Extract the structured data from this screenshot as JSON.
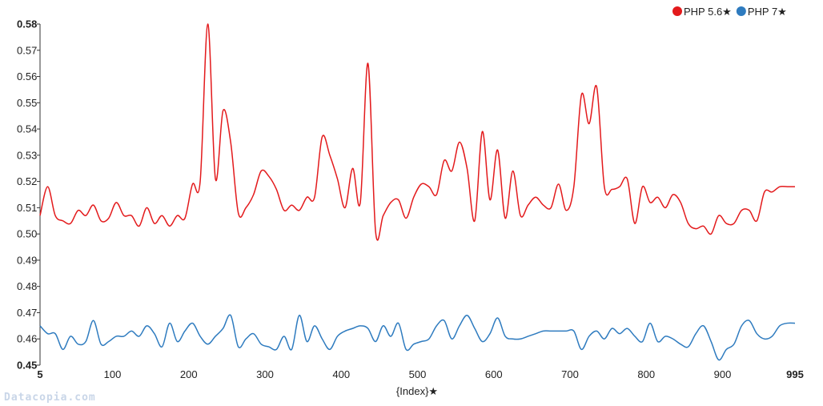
{
  "watermark": "Datacopia.com",
  "legend": [
    {
      "label": "PHP 5.6★",
      "color": "#e31a1c"
    },
    {
      "label": "PHP 7★",
      "color": "#2e7bbf"
    }
  ],
  "chart_data": {
    "type": "line",
    "xlabel": "{Index}★",
    "ylabel": "",
    "xlim": [
      5,
      995
    ],
    "ylim": [
      0.45,
      0.58
    ],
    "x_ticks": [
      {
        "value": 5,
        "label": "5",
        "bold": true
      },
      {
        "value": 100,
        "label": "100",
        "bold": false
      },
      {
        "value": 200,
        "label": "200",
        "bold": false
      },
      {
        "value": 300,
        "label": "300",
        "bold": false
      },
      {
        "value": 400,
        "label": "400",
        "bold": false
      },
      {
        "value": 500,
        "label": "500",
        "bold": false
      },
      {
        "value": 600,
        "label": "600",
        "bold": false
      },
      {
        "value": 700,
        "label": "700",
        "bold": false
      },
      {
        "value": 800,
        "label": "800",
        "bold": false
      },
      {
        "value": 900,
        "label": "900",
        "bold": false
      },
      {
        "value": 995,
        "label": "995",
        "bold": true
      }
    ],
    "y_ticks": [
      {
        "value": 0.45,
        "label": "0.45",
        "bold": true
      },
      {
        "value": 0.46,
        "label": "0.46",
        "bold": false
      },
      {
        "value": 0.47,
        "label": "0.47",
        "bold": false
      },
      {
        "value": 0.48,
        "label": "0.48",
        "bold": false
      },
      {
        "value": 0.49,
        "label": "0.49",
        "bold": false
      },
      {
        "value": 0.5,
        "label": "0.50",
        "bold": false
      },
      {
        "value": 0.51,
        "label": "0.51",
        "bold": false
      },
      {
        "value": 0.52,
        "label": "0.52",
        "bold": false
      },
      {
        "value": 0.53,
        "label": "0.53",
        "bold": false
      },
      {
        "value": 0.54,
        "label": "0.54",
        "bold": false
      },
      {
        "value": 0.55,
        "label": "0.55",
        "bold": false
      },
      {
        "value": 0.56,
        "label": "0.56",
        "bold": false
      },
      {
        "value": 0.57,
        "label": "0.57",
        "bold": false
      },
      {
        "value": 0.58,
        "label": "0.58",
        "bold": true
      }
    ],
    "grid": false,
    "legend_position": "top-right",
    "series": [
      {
        "name": "PHP 5.6★",
        "color": "#e31a1c",
        "x": [
          5,
          15,
          25,
          35,
          45,
          55,
          65,
          75,
          85,
          95,
          105,
          115,
          125,
          135,
          145,
          155,
          165,
          175,
          185,
          195,
          205,
          215,
          225,
          235,
          245,
          255,
          265,
          275,
          285,
          295,
          305,
          315,
          325,
          335,
          345,
          355,
          365,
          375,
          385,
          395,
          405,
          415,
          425,
          435,
          445,
          455,
          465,
          475,
          485,
          495,
          505,
          515,
          525,
          535,
          545,
          555,
          565,
          575,
          585,
          595,
          605,
          615,
          625,
          635,
          645,
          655,
          665,
          675,
          685,
          695,
          705,
          715,
          725,
          735,
          745,
          755,
          765,
          775,
          785,
          795,
          805,
          815,
          825,
          835,
          845,
          855,
          865,
          875,
          885,
          895,
          905,
          915,
          925,
          935,
          945,
          955,
          965,
          975,
          985,
          995
        ],
        "y": [
          0.507,
          0.518,
          0.507,
          0.505,
          0.504,
          0.509,
          0.507,
          0.511,
          0.505,
          0.506,
          0.512,
          0.507,
          0.507,
          0.503,
          0.51,
          0.504,
          0.507,
          0.503,
          0.507,
          0.506,
          0.519,
          0.52,
          0.58,
          0.521,
          0.547,
          0.535,
          0.508,
          0.51,
          0.515,
          0.524,
          0.522,
          0.517,
          0.509,
          0.511,
          0.509,
          0.514,
          0.514,
          0.537,
          0.53,
          0.521,
          0.51,
          0.525,
          0.512,
          0.565,
          0.501,
          0.507,
          0.512,
          0.513,
          0.506,
          0.514,
          0.519,
          0.518,
          0.515,
          0.528,
          0.524,
          0.535,
          0.525,
          0.505,
          0.539,
          0.513,
          0.532,
          0.506,
          0.524,
          0.507,
          0.511,
          0.514,
          0.511,
          0.51,
          0.519,
          0.509,
          0.518,
          0.553,
          0.542,
          0.556,
          0.518,
          0.517,
          0.518,
          0.521,
          0.504,
          0.518,
          0.512,
          0.514,
          0.51,
          0.515,
          0.512,
          0.504,
          0.502,
          0.503,
          0.5,
          0.507,
          0.504,
          0.504,
          0.509,
          0.509,
          0.505,
          0.516,
          0.516,
          0.518,
          0.518,
          0.518
        ]
      },
      {
        "name": "PHP 7★",
        "color": "#2e7bbf",
        "x": [
          5,
          15,
          25,
          35,
          45,
          55,
          65,
          75,
          85,
          95,
          105,
          115,
          125,
          135,
          145,
          155,
          165,
          175,
          185,
          195,
          205,
          215,
          225,
          235,
          245,
          255,
          265,
          275,
          285,
          295,
          305,
          315,
          325,
          335,
          345,
          355,
          365,
          375,
          385,
          395,
          405,
          415,
          425,
          435,
          445,
          455,
          465,
          475,
          485,
          495,
          505,
          515,
          525,
          535,
          545,
          555,
          565,
          575,
          585,
          595,
          605,
          615,
          625,
          635,
          645,
          655,
          665,
          675,
          685,
          695,
          705,
          715,
          725,
          735,
          745,
          755,
          765,
          775,
          785,
          795,
          805,
          815,
          825,
          835,
          845,
          855,
          865,
          875,
          885,
          895,
          905,
          915,
          925,
          935,
          945,
          955,
          965,
          975,
          985,
          995
        ],
        "y": [
          0.465,
          0.462,
          0.462,
          0.456,
          0.461,
          0.458,
          0.459,
          0.467,
          0.458,
          0.459,
          0.461,
          0.461,
          0.463,
          0.461,
          0.465,
          0.462,
          0.457,
          0.466,
          0.459,
          0.463,
          0.466,
          0.461,
          0.458,
          0.461,
          0.464,
          0.469,
          0.457,
          0.46,
          0.462,
          0.458,
          0.457,
          0.456,
          0.461,
          0.456,
          0.469,
          0.459,
          0.465,
          0.46,
          0.456,
          0.461,
          0.463,
          0.464,
          0.465,
          0.464,
          0.459,
          0.465,
          0.461,
          0.466,
          0.456,
          0.458,
          0.459,
          0.46,
          0.465,
          0.467,
          0.46,
          0.465,
          0.469,
          0.464,
          0.459,
          0.462,
          0.468,
          0.461,
          0.46,
          0.46,
          0.461,
          0.462,
          0.463,
          0.463,
          0.463,
          0.463,
          0.463,
          0.456,
          0.461,
          0.463,
          0.46,
          0.464,
          0.462,
          0.464,
          0.461,
          0.459,
          0.466,
          0.459,
          0.461,
          0.46,
          0.458,
          0.457,
          0.462,
          0.465,
          0.459,
          0.452,
          0.456,
          0.458,
          0.465,
          0.467,
          0.462,
          0.46,
          0.461,
          0.465,
          0.466,
          0.466
        ]
      }
    ]
  }
}
